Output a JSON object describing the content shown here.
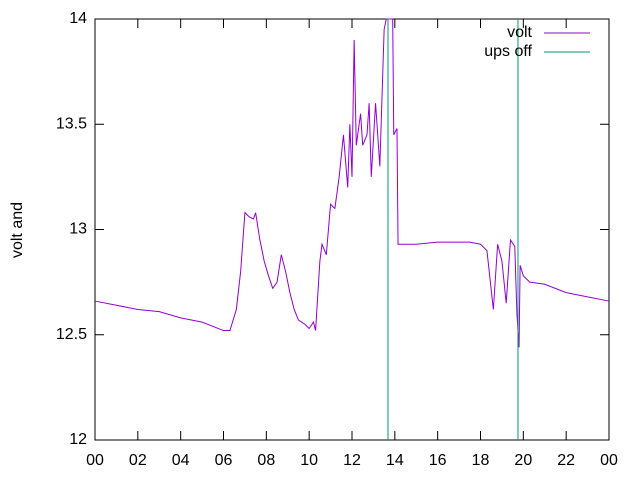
{
  "chart_data": {
    "type": "line",
    "ylabel": "volt and",
    "xlim": [
      0,
      24
    ],
    "ylim": [
      12,
      14
    ],
    "xticks": [
      {
        "value": 0,
        "label": "00"
      },
      {
        "value": 2,
        "label": "02"
      },
      {
        "value": 4,
        "label": "04"
      },
      {
        "value": 6,
        "label": "06"
      },
      {
        "value": 8,
        "label": "08"
      },
      10,
      12,
      14,
      16,
      18,
      20,
      22,
      {
        "value": 24,
        "label": "00"
      }
    ],
    "yticks": [
      12,
      12.5,
      13,
      13.5,
      14
    ],
    "legend": "top-right",
    "series": [
      {
        "name": "volt",
        "color": "#9400d3",
        "x": [
          0,
          1,
          2,
          3,
          4,
          5,
          6,
          6.3,
          6.6,
          6.8,
          7.0,
          7.2,
          7.4,
          7.5,
          7.7,
          7.9,
          8.1,
          8.3,
          8.5,
          8.7,
          8.9,
          9.1,
          9.3,
          9.5,
          9.8,
          10.0,
          10.2,
          10.3,
          10.5,
          10.6,
          10.8,
          11.0,
          11.2,
          11.4,
          11.6,
          11.8,
          11.9,
          12.0,
          12.1,
          12.2,
          12.4,
          12.5,
          12.7,
          12.8,
          12.9,
          13.1,
          13.3,
          13.5,
          13.6,
          13.9,
          13.95,
          14.1,
          14.15,
          14.2,
          15,
          16,
          17,
          17.5,
          18,
          18.3,
          18.6,
          18.8,
          19.0,
          19.2,
          19.4,
          19.6,
          19.7,
          19.8,
          19.85,
          20.0,
          20.3,
          21,
          22,
          23,
          24
        ],
        "values": [
          12.66,
          12.64,
          12.62,
          12.61,
          12.58,
          12.56,
          12.52,
          12.52,
          12.62,
          12.8,
          13.08,
          13.06,
          13.05,
          13.08,
          12.95,
          12.85,
          12.78,
          12.72,
          12.75,
          12.88,
          12.8,
          12.7,
          12.62,
          12.57,
          12.55,
          12.53,
          12.56,
          12.52,
          12.85,
          12.93,
          12.88,
          13.12,
          13.1,
          13.25,
          13.45,
          13.2,
          13.5,
          13.25,
          13.9,
          13.4,
          13.55,
          13.4,
          13.45,
          13.6,
          13.25,
          13.6,
          13.3,
          13.95,
          14,
          14,
          13.45,
          13.48,
          12.93,
          12.93,
          12.93,
          12.94,
          12.94,
          12.94,
          12.93,
          12.9,
          12.62,
          12.93,
          12.85,
          12.65,
          12.95,
          12.92,
          12.6,
          12.44,
          12.83,
          12.78,
          12.75,
          12.74,
          12.7,
          12.68,
          12.66
        ]
      },
      {
        "name": "ups off",
        "color": "#009e73",
        "x": [
          13.68,
          13.68,
          13.68,
          19.75,
          19.75
        ],
        "values": [
          12,
          14,
          null,
          12,
          14
        ]
      }
    ]
  }
}
